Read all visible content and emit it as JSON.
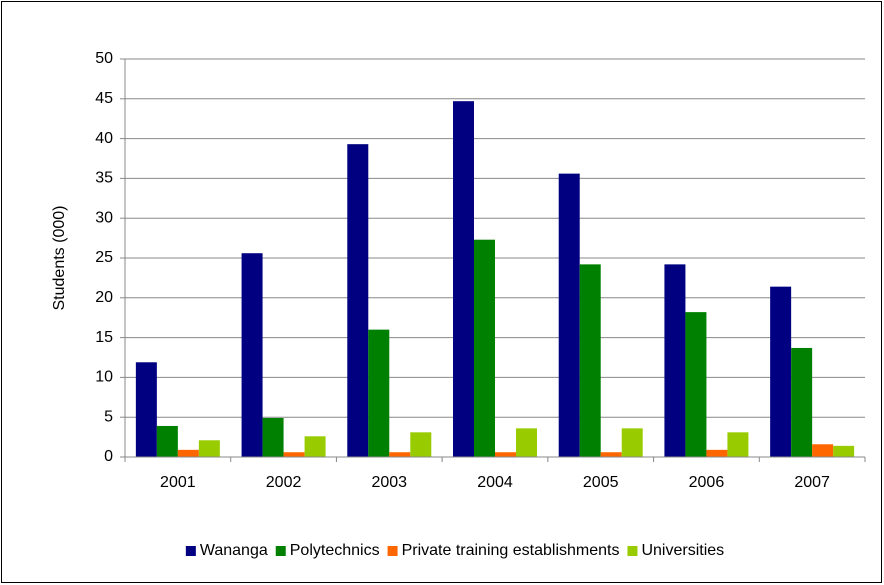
{
  "chart_data": {
    "type": "bar",
    "y_label": "Students (000)",
    "categories": [
      "2001",
      "2002",
      "2003",
      "2004",
      "2005",
      "2006",
      "2007"
    ],
    "series": [
      {
        "name": "Wananga",
        "color": "#000080",
        "values": [
          11.9,
          25.6,
          39.3,
          44.7,
          35.6,
          24.2,
          21.4
        ]
      },
      {
        "name": "Polytechnics",
        "color": "#008000",
        "values": [
          3.9,
          4.9,
          16,
          27.3,
          24.2,
          18.2,
          13.7
        ]
      },
      {
        "name": "Private training establishments",
        "color": "#ff6600",
        "values": [
          0.9,
          0.6,
          0.6,
          0.6,
          0.6,
          0.9,
          1.6
        ]
      },
      {
        "name": "Universities",
        "color": "#99cc00",
        "values": [
          2.1,
          2.6,
          3.1,
          3.6,
          3.6,
          3.1,
          1.4
        ]
      }
    ],
    "ylim": [
      0,
      50
    ],
    "yticks": [
      0,
      5,
      10,
      15,
      20,
      25,
      30,
      35,
      40,
      45,
      50
    ],
    "grid": true,
    "legend": "bottom"
  }
}
